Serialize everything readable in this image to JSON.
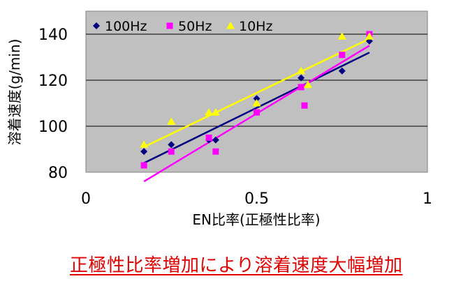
{
  "chart_data": {
    "type": "scatter",
    "xlabel": "EN比率(正極性比率)",
    "ylabel": "溶着速度(g/min)",
    "xlim": [
      0,
      1
    ],
    "ylim": [
      80,
      150
    ],
    "xticks": [
      "0",
      "0.5",
      "1"
    ],
    "yticks": [
      "80",
      "100",
      "120",
      "140"
    ],
    "grid": true,
    "legend_position": "top-left",
    "series": [
      {
        "name": "100Hz",
        "color": "#000080",
        "marker": "diamond",
        "points": [
          [
            0.17,
            89
          ],
          [
            0.25,
            92
          ],
          [
            0.36,
            94
          ],
          [
            0.38,
            94
          ],
          [
            0.5,
            112
          ],
          [
            0.63,
            121
          ],
          [
            0.75,
            124
          ],
          [
            0.83,
            137
          ]
        ],
        "trend": [
          [
            0.17,
            84
          ],
          [
            0.83,
            132
          ]
        ]
      },
      {
        "name": "50Hz",
        "color": "#ff00ff",
        "marker": "square",
        "points": [
          [
            0.17,
            83
          ],
          [
            0.25,
            89
          ],
          [
            0.36,
            95
          ],
          [
            0.38,
            89
          ],
          [
            0.5,
            106
          ],
          [
            0.63,
            117
          ],
          [
            0.64,
            109
          ],
          [
            0.75,
            131
          ],
          [
            0.83,
            140
          ]
        ],
        "trend": [
          [
            0.17,
            76
          ],
          [
            0.83,
            135
          ]
        ]
      },
      {
        "name": "10Hz",
        "color": "#ffff00",
        "marker": "triangle",
        "points": [
          [
            0.17,
            92
          ],
          [
            0.25,
            102
          ],
          [
            0.36,
            106
          ],
          [
            0.38,
            106
          ],
          [
            0.5,
            110
          ],
          [
            0.63,
            124
          ],
          [
            0.65,
            118
          ],
          [
            0.75,
            139
          ],
          [
            0.83,
            139
          ]
        ],
        "trend": [
          [
            0.17,
            91
          ],
          [
            0.83,
            138
          ]
        ]
      }
    ]
  },
  "caption": "正極性比率増加により溶着速度大幅増加"
}
